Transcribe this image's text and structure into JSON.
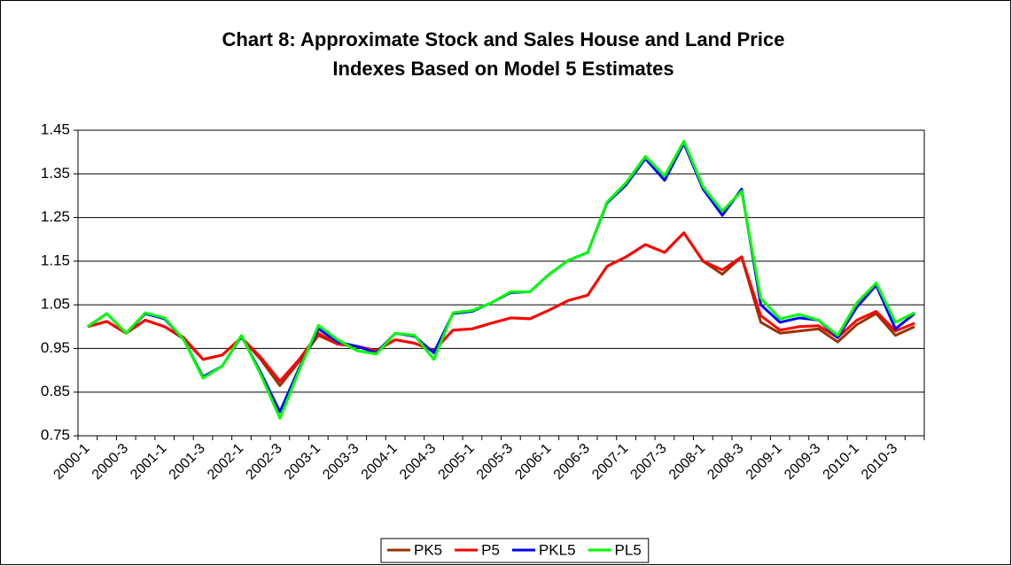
{
  "chart_data": {
    "type": "line",
    "title": [
      "Chart 8: Approximate Stock and Sales House and Land Price",
      "Indexes Based on Model 5 Estimates"
    ],
    "categories": [
      "2000-1",
      null,
      "2000-3",
      null,
      "2001-1",
      null,
      "2001-3",
      null,
      "2002-1",
      null,
      "2002-3",
      null,
      "2003-1",
      null,
      "2003-3",
      null,
      "2004-1",
      null,
      "2004-3",
      null,
      "2005-1",
      null,
      "2005-3",
      null,
      "2006-1",
      null,
      "2006-3",
      null,
      "2007-1",
      null,
      "2007-3",
      null,
      "2008-1",
      null,
      "2008-3",
      null,
      "2009-1",
      null,
      "2009-3",
      null,
      "2010-1",
      null,
      "2010-3",
      null
    ],
    "series": [
      {
        "name": "PK5",
        "color": "#993300",
        "values": [
          1.0,
          1.012,
          0.985,
          1.015,
          1.0,
          0.972,
          0.925,
          0.935,
          0.975,
          0.925,
          0.865,
          0.92,
          0.98,
          0.96,
          0.955,
          0.945,
          0.97,
          0.962,
          0.945,
          0.992,
          0.995,
          1.008,
          1.02,
          1.018,
          1.038,
          1.06,
          1.072,
          1.138,
          1.16,
          1.188,
          1.17,
          1.215,
          1.15,
          1.12,
          1.16,
          1.01,
          0.985,
          0.99,
          0.995,
          0.965,
          1.005,
          1.03,
          0.98,
          1.0
        ]
      },
      {
        "name": "P5",
        "color": "#ff0000",
        "values": [
          1.0,
          1.012,
          0.985,
          1.015,
          1.0,
          0.975,
          0.925,
          0.935,
          0.975,
          0.93,
          0.875,
          0.925,
          0.985,
          0.96,
          0.955,
          0.945,
          0.97,
          0.962,
          0.945,
          0.992,
          0.995,
          1.008,
          1.02,
          1.018,
          1.038,
          1.06,
          1.072,
          1.138,
          1.16,
          1.188,
          1.17,
          1.215,
          1.15,
          1.13,
          1.16,
          1.025,
          0.992,
          1.0,
          1.002,
          0.975,
          1.015,
          1.035,
          0.99,
          1.008
        ]
      },
      {
        "name": "PKL5",
        "color": "#0000ff",
        "values": [
          1.0,
          1.03,
          0.985,
          1.03,
          1.018,
          0.97,
          0.885,
          0.91,
          0.978,
          0.895,
          0.805,
          0.905,
          0.995,
          0.965,
          0.955,
          0.94,
          0.985,
          0.978,
          0.94,
          1.03,
          1.035,
          1.055,
          1.078,
          1.08,
          1.12,
          1.152,
          1.17,
          1.283,
          1.325,
          1.385,
          1.335,
          1.42,
          1.315,
          1.255,
          1.315,
          1.05,
          1.01,
          1.02,
          1.015,
          0.975,
          1.045,
          1.095,
          0.995,
          1.03
        ]
      },
      {
        "name": "PL5",
        "color": "#00ff00",
        "values": [
          1.0,
          1.03,
          0.985,
          1.032,
          1.02,
          0.97,
          0.882,
          0.91,
          0.98,
          0.89,
          0.79,
          0.9,
          1.003,
          0.97,
          0.945,
          0.937,
          0.985,
          0.98,
          0.925,
          1.032,
          1.037,
          1.055,
          1.08,
          1.08,
          1.12,
          1.152,
          1.17,
          1.285,
          1.33,
          1.39,
          1.345,
          1.425,
          1.32,
          1.265,
          1.31,
          1.065,
          1.018,
          1.028,
          1.015,
          0.98,
          1.055,
          1.1,
          1.01,
          1.032
        ]
      }
    ],
    "ylim": [
      0.75,
      1.45
    ],
    "yticks": [
      0.75,
      0.85,
      0.95,
      1.05,
      1.15,
      1.25,
      1.35,
      1.45
    ],
    "grid": true,
    "legend": "bottom"
  }
}
